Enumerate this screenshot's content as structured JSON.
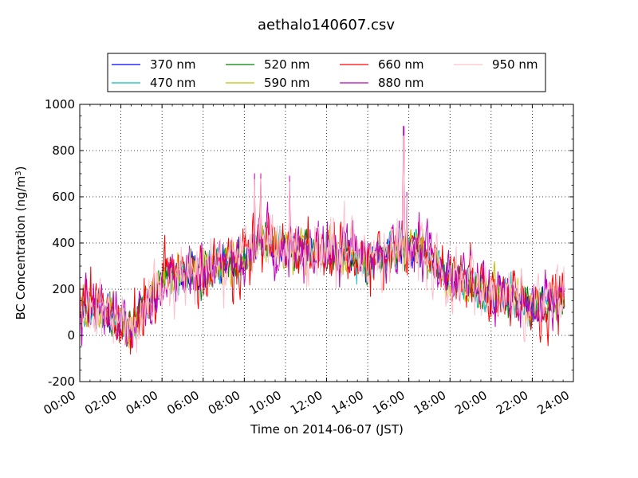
{
  "chart_data": {
    "type": "line",
    "title": "aethalo140607.csv",
    "xlabel": "Time on 2014-06-07 (JST)",
    "ylabel_main": "BC Concentration (ng/m",
    "ylabel_sup": "3",
    "ylabel_close": ")",
    "ylim": [
      -200,
      1000
    ],
    "yticks": [
      -200,
      0,
      200,
      400,
      600,
      800,
      1000
    ],
    "xlim_hours": [
      0,
      24
    ],
    "xticks": [
      "00:00",
      "02:00",
      "04:00",
      "06:00",
      "08:00",
      "10:00",
      "12:00",
      "14:00",
      "16:00",
      "18:00",
      "20:00",
      "22:00",
      "24:00"
    ],
    "grid": true,
    "legend_position": "top-center",
    "legend_columns": 4,
    "series": [
      {
        "name": "370 nm",
        "color": "#0000ff"
      },
      {
        "name": "470 nm",
        "color": "#00bfbf"
      },
      {
        "name": "520 nm",
        "color": "#008000"
      },
      {
        "name": "590 nm",
        "color": "#bfbf00"
      },
      {
        "name": "660 nm",
        "color": "#ff0000"
      },
      {
        "name": "880 nm",
        "color": "#bf00bf"
      },
      {
        "name": "950 nm",
        "color": "#ffc0cb"
      }
    ],
    "trend_hours": [
      0,
      1,
      2,
      2.5,
      3,
      4,
      5,
      6,
      7,
      8,
      8.7,
      9.5,
      10,
      11,
      12,
      13,
      14,
      15,
      15.8,
      16.5,
      17,
      18,
      19,
      20,
      21,
      22,
      23,
      23.5
    ],
    "trend_values": [
      120,
      110,
      60,
      20,
      90,
      230,
      270,
      280,
      300,
      330,
      420,
      390,
      380,
      360,
      360,
      360,
      320,
      350,
      380,
      370,
      340,
      250,
      220,
      180,
      170,
      130,
      140,
      160
    ],
    "peaks": [
      {
        "hour": 8.5,
        "value": 700
      },
      {
        "hour": 8.8,
        "value": 700
      },
      {
        "hour": 10.2,
        "value": 690
      },
      {
        "hour": 15.75,
        "value": 905
      },
      {
        "hour": 15.9,
        "value": 620
      }
    ]
  }
}
